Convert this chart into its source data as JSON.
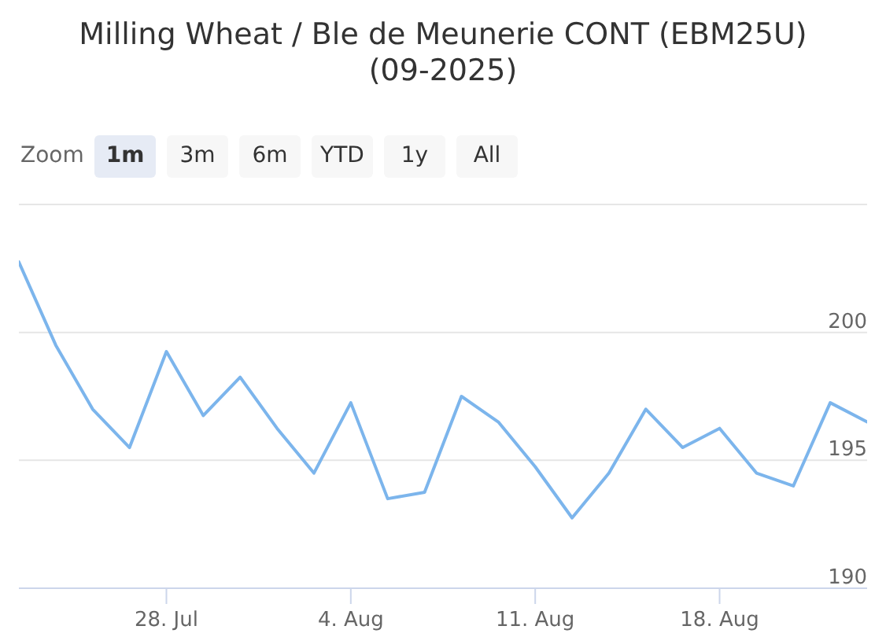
{
  "chart_data": {
    "type": "line",
    "title": "Milling Wheat / Ble de Meunerie CONT (EBM25U) (09-2025)",
    "annotations": [
      "Zoom",
      "1m",
      "3m",
      "6m",
      "YTD",
      "1y",
      "All"
    ],
    "categories": [
      null,
      null,
      null,
      null,
      "28. Jul",
      null,
      null,
      null,
      null,
      "4. Aug",
      null,
      null,
      null,
      null,
      "11. Aug",
      null,
      null,
      null,
      null,
      "18. Aug",
      null,
      null,
      null,
      null
    ],
    "values": [
      202.75,
      199.5,
      197.0,
      195.5,
      199.25,
      196.75,
      198.25,
      196.25,
      194.5,
      197.25,
      193.5,
      193.75,
      197.5,
      196.5,
      194.75,
      192.75,
      194.5,
      197.0,
      195.5,
      196.25,
      194.5,
      194.0,
      197.25,
      196.5
    ],
    "color": "#7cb5ec",
    "ylim": [
      190,
      205
    ],
    "yticks": [
      190,
      195,
      200,
      {
        "value": 205,
        "label": null
      }
    ],
    "grid": "y"
  }
}
